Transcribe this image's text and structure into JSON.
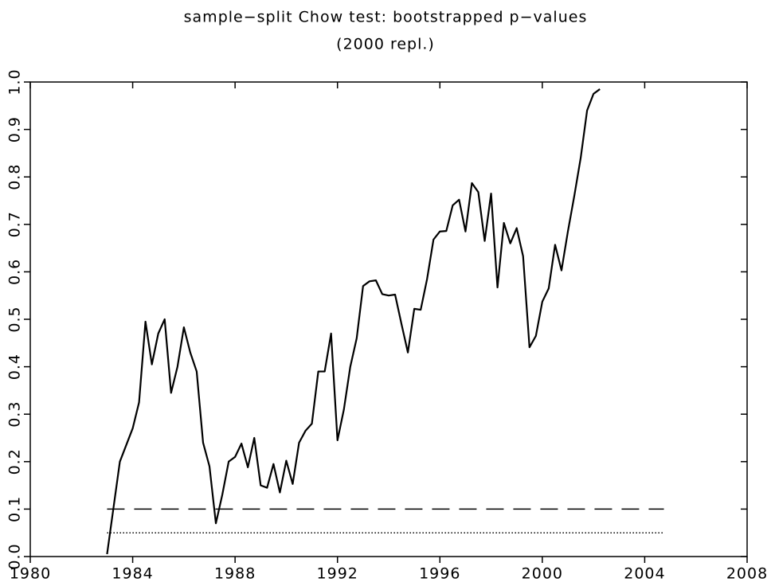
{
  "chart_data": {
    "type": "line",
    "title": "sample−split Chow test: bootstrapped p−values",
    "subtitle": "(2000 repl.)",
    "x": [
      1983,
      1983.5,
      1983.75,
      1984,
      1984.25,
      1984.5,
      1984.75,
      1985,
      1985.25,
      1985.5,
      1985.75,
      1986,
      1986.25,
      1986.5,
      1986.75,
      1987,
      1987.25,
      1987.5,
      1987.75,
      1988,
      1988.25,
      1988.5,
      1988.75,
      1989,
      1989.25,
      1989.5,
      1989.75,
      1990,
      1990.25,
      1990.5,
      1990.75,
      1991,
      1991.25,
      1991.5,
      1991.75,
      1992,
      1992.25,
      1992.5,
      1992.75,
      1993,
      1993.25,
      1993.5,
      1993.75,
      1994,
      1994.25,
      1994.5,
      1994.75,
      1995,
      1995.25,
      1995.5,
      1995.75,
      1996,
      1996.25,
      1996.5,
      1996.75,
      1997,
      1997.25,
      1997.5,
      1997.75,
      1998,
      1998.25,
      1998.5,
      1998.75,
      1999,
      1999.25,
      1999.5,
      1999.75,
      2000,
      2000.25,
      2000.5,
      2000.75,
      2001,
      2001.25,
      2001.5,
      2001.75,
      2002,
      2002.25
    ],
    "series": [
      {
        "color": "#000000",
        "values": [
          0.005,
          0.2,
          0.235,
          0.27,
          0.325,
          0.495,
          0.405,
          0.47,
          0.5,
          0.345,
          0.4,
          0.483,
          0.43,
          0.39,
          0.24,
          0.19,
          0.07,
          0.13,
          0.2,
          0.21,
          0.238,
          0.188,
          0.25,
          0.15,
          0.145,
          0.195,
          0.135,
          0.202,
          0.153,
          0.24,
          0.265,
          0.28,
          0.39,
          0.39,
          0.47,
          0.245,
          0.31,
          0.4,
          0.46,
          0.57,
          0.58,
          0.582,
          0.553,
          0.55,
          0.552,
          0.49,
          0.43,
          0.522,
          0.52,
          0.585,
          0.668,
          0.685,
          0.686,
          0.74,
          0.752,
          0.685,
          0.787,
          0.768,
          0.665,
          0.765,
          0.567,
          0.703,
          0.66,
          0.692,
          0.633,
          0.441,
          0.465,
          0.537,
          0.565,
          0.657,
          0.603,
          0.685,
          0.76,
          0.84,
          0.94,
          0.975,
          0.985
        ]
      }
    ],
    "hlines": [
      {
        "value": 0.1,
        "style": "dashed"
      },
      {
        "value": 0.05,
        "style": "dotted"
      }
    ],
    "hline_x": [
      1983,
      2004.75
    ],
    "xlim": [
      1980,
      2008
    ],
    "xticks": [
      1980,
      1984,
      1988,
      1992,
      1996,
      2000,
      2004,
      2008
    ],
    "ylim": [
      0,
      1
    ],
    "yticks": [
      {
        "value": 0,
        "label": "0.0"
      },
      0.1,
      0.2,
      0.3,
      0.4,
      0.5,
      0.6,
      0.7,
      0.8,
      0.9,
      {
        "value": 1,
        "label": "1.0"
      }
    ]
  }
}
